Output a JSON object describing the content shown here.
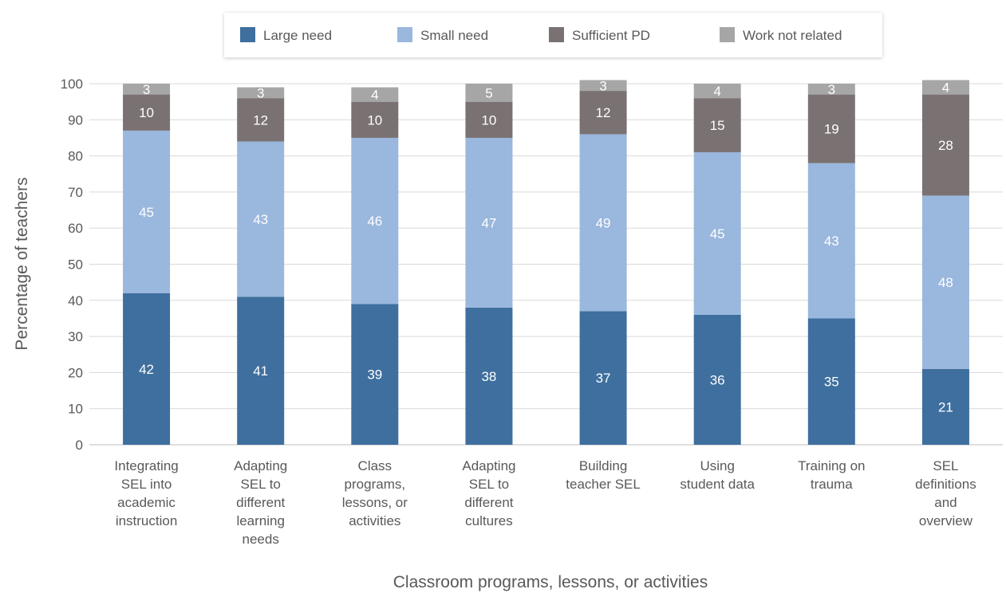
{
  "chart_data": {
    "type": "bar",
    "stacked": true,
    "categories": [
      [
        "Integrating",
        "SEL into",
        "academic",
        "instruction"
      ],
      [
        "Adapting",
        "SEL to",
        "different",
        "learning",
        "needs"
      ],
      [
        "Class",
        "programs,",
        "lessons, or",
        "activities"
      ],
      [
        "Adapting",
        "SEL to",
        "different",
        "cultures"
      ],
      [
        "Building",
        "teacher SEL"
      ],
      [
        "Using",
        "student data"
      ],
      [
        "Training on",
        "trauma"
      ],
      [
        "SEL",
        "definitions",
        "and",
        "overview"
      ]
    ],
    "series": [
      {
        "name": "Large need",
        "color": "#3e6f9e",
        "label_color": "#ffffff",
        "values": [
          42,
          41,
          39,
          38,
          37,
          36,
          35,
          21
        ]
      },
      {
        "name": "Small need",
        "color": "#9ab7dd",
        "label_color": "#ffffff",
        "values": [
          45,
          43,
          46,
          47,
          49,
          45,
          43,
          48
        ]
      },
      {
        "name": "Sufficient PD",
        "color": "#7a7272",
        "label_color": "#ffffff",
        "values": [
          10,
          12,
          10,
          10,
          12,
          15,
          19,
          28
        ]
      },
      {
        "name": "Work not related",
        "color": "#a6a6a6",
        "label_color": "#ffffff",
        "values": [
          3,
          3,
          4,
          5,
          3,
          4,
          3,
          4
        ]
      }
    ],
    "xlabel": "Classroom programs, lessons, or activities",
    "ylabel": "Percentage of teachers",
    "ylim": [
      0,
      100
    ],
    "yticks": [
      0,
      10,
      20,
      30,
      40,
      50,
      60,
      70,
      80,
      90,
      100
    ],
    "grid": true,
    "legend_position": "top"
  }
}
